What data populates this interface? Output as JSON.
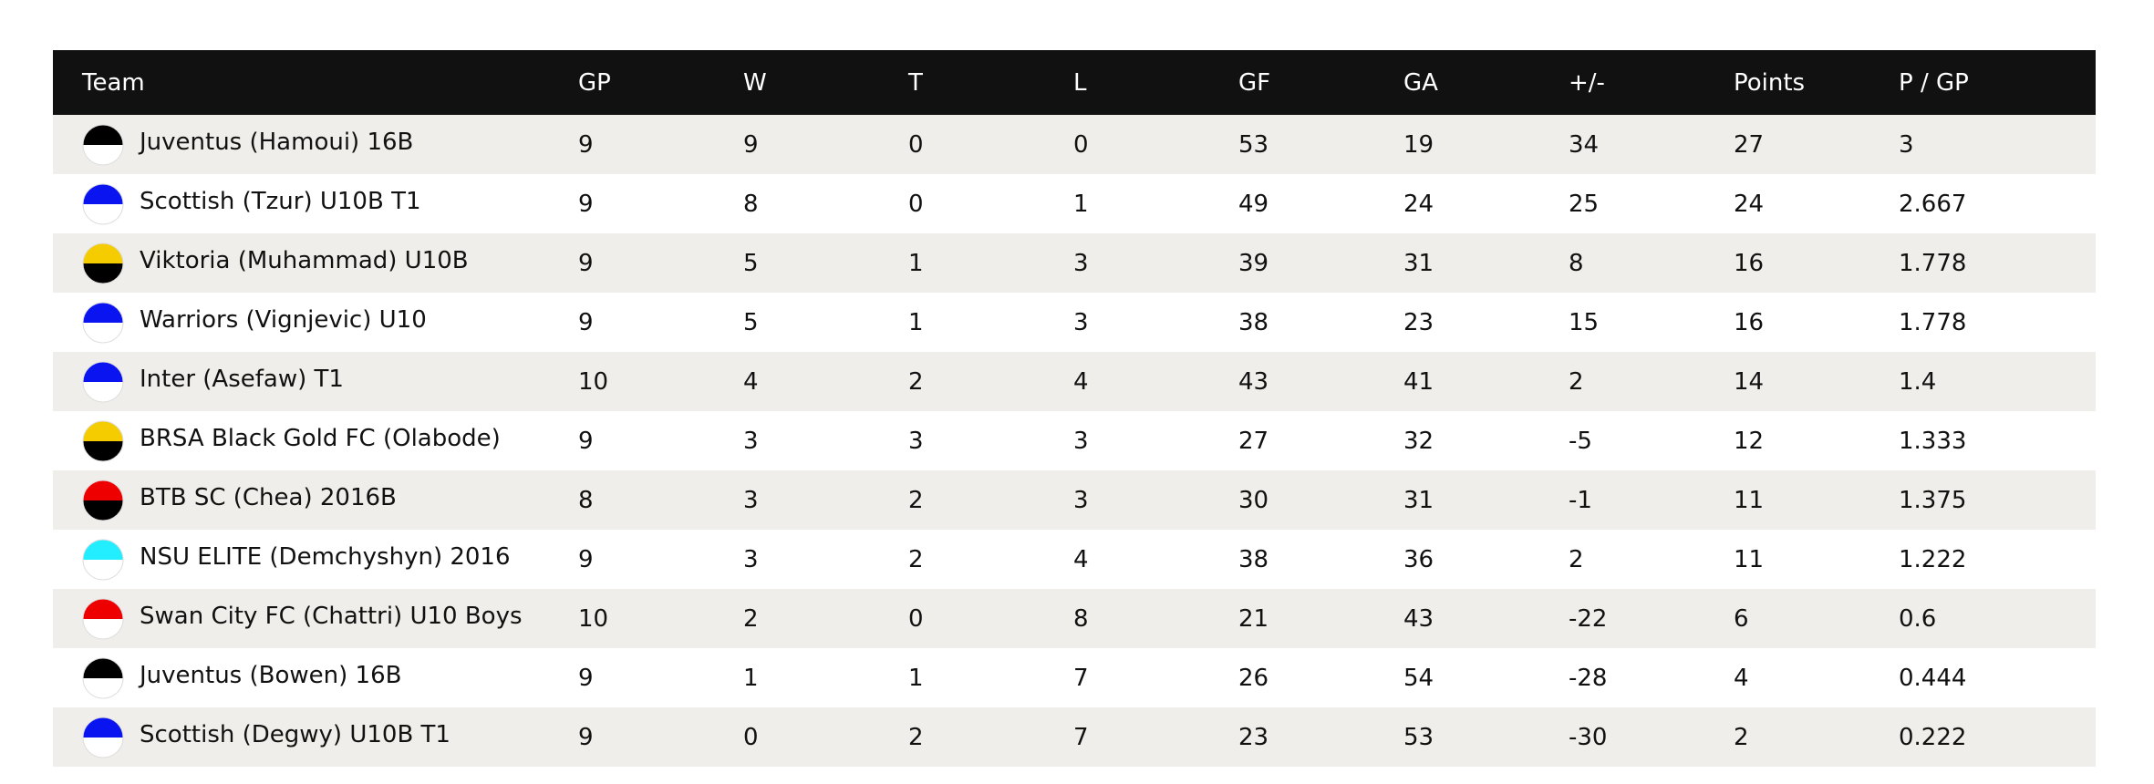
{
  "table": {
    "columns": [
      "Team",
      "GP",
      "W",
      "T",
      "L",
      "GF",
      "GA",
      "+/-",
      "Points",
      "P / GP"
    ],
    "rows": [
      {
        "team": "Juventus (Hamoui) 16B",
        "colors": [
          "#000000",
          "#ffffff"
        ],
        "stats": [
          9,
          9,
          0,
          0,
          53,
          19,
          34,
          27,
          3
        ]
      },
      {
        "team": "Scottish (Tzur) U10B T1",
        "colors": [
          "#0a14f0",
          "#ffffff"
        ],
        "stats": [
          9,
          8,
          0,
          1,
          49,
          24,
          25,
          24,
          2.667
        ]
      },
      {
        "team": "Viktoria (Muhammad) U10B",
        "colors": [
          "#f5cc00",
          "#000000"
        ],
        "stats": [
          9,
          5,
          1,
          3,
          39,
          31,
          8,
          16,
          1.778
        ]
      },
      {
        "team": "Warriors (Vignjevic) U10",
        "colors": [
          "#0a14f0",
          "#ffffff"
        ],
        "stats": [
          9,
          5,
          1,
          3,
          38,
          23,
          15,
          16,
          1.778
        ]
      },
      {
        "team": "Inter (Asefaw) T1",
        "colors": [
          "#0a14f0",
          "#ffffff"
        ],
        "stats": [
          10,
          4,
          2,
          4,
          43,
          41,
          2,
          14,
          1.4
        ]
      },
      {
        "team": "BRSA Black Gold FC (Olabode)",
        "colors": [
          "#f5cc00",
          "#000000"
        ],
        "stats": [
          9,
          3,
          3,
          3,
          27,
          32,
          -5,
          12,
          1.333
        ]
      },
      {
        "team": "BTB SC (Chea) 2016B",
        "colors": [
          "#ee0000",
          "#000000"
        ],
        "stats": [
          8,
          3,
          2,
          3,
          30,
          31,
          -1,
          11,
          1.375
        ]
      },
      {
        "team": "NSU ELITE (Demchyshyn) 2016",
        "colors": [
          "#22eeff",
          "#ffffff"
        ],
        "stats": [
          9,
          3,
          2,
          4,
          38,
          36,
          2,
          11,
          1.222
        ]
      },
      {
        "team": "Swan City FC (Chattri) U10 Boys",
        "colors": [
          "#ee0000",
          "#ffffff"
        ],
        "stats": [
          10,
          2,
          0,
          8,
          21,
          43,
          -22,
          6,
          0.6
        ]
      },
      {
        "team": "Juventus (Bowen) 16B",
        "colors": [
          "#000000",
          "#ffffff"
        ],
        "stats": [
          9,
          1,
          1,
          7,
          26,
          54,
          -28,
          4,
          0.444
        ]
      },
      {
        "team": "Scottish (Degwy) U10B T1",
        "colors": [
          "#0a14f0",
          "#ffffff"
        ],
        "stats": [
          9,
          0,
          2,
          7,
          23,
          53,
          -30,
          2,
          0.222
        ]
      }
    ]
  }
}
